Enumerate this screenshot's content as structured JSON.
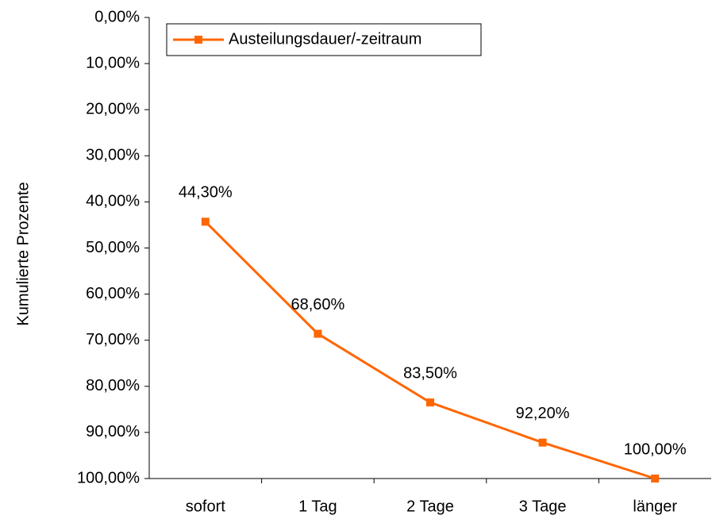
{
  "chart_data": {
    "type": "line",
    "y_axis_label": "Kumulierte Prozente",
    "categories": [
      "sofort",
      "1 Tag",
      "2 Tage",
      "3 Tage",
      "länger"
    ],
    "series": [
      {
        "name": "Austeilungsdauer/-zeitraum",
        "color": "#ff6600",
        "values": [
          44.3,
          68.6,
          83.5,
          92.2,
          100
        ],
        "value_labels": [
          "44,30%",
          "68,60%",
          "83,50%",
          "92,20%",
          "100,00%"
        ]
      }
    ],
    "ylim": [
      100,
      0
    ],
    "yticks": [
      {
        "value": 0,
        "label": "0,00%"
      },
      {
        "value": 10,
        "label": "10,00%"
      },
      {
        "value": 20,
        "label": "20,00%"
      },
      {
        "value": 30,
        "label": "30,00%"
      },
      {
        "value": 40,
        "label": "40,00%"
      },
      {
        "value": 50,
        "label": "50,00%"
      },
      {
        "value": 60,
        "label": "60,00%"
      },
      {
        "value": 70,
        "label": "70,00%"
      },
      {
        "value": 80,
        "label": "80,00%"
      },
      {
        "value": 90,
        "label": "90,00%"
      },
      {
        "value": 100,
        "label": "100,00%"
      }
    ],
    "legend": "top-left"
  }
}
